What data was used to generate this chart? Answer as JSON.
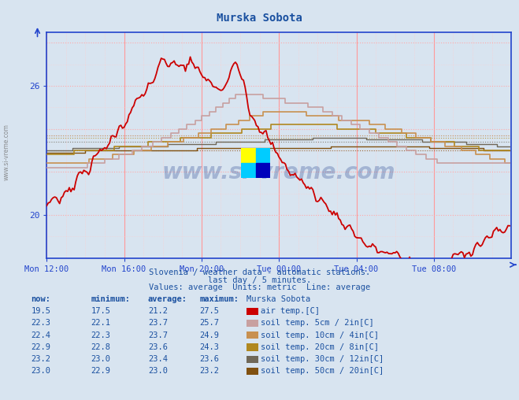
{
  "title": "Murska Sobota",
  "bg_color": "#d8e4f0",
  "plot_bg_color": "#d8e4f0",
  "xlim": [
    0,
    288
  ],
  "ylim": [
    18.0,
    28.5
  ],
  "ytick_positions": [
    20,
    26
  ],
  "ytick_labels": [
    "20",
    "26"
  ],
  "xtick_labels": [
    "Mon 12:00",
    "Mon 16:00",
    "Mon 20:00",
    "Tue 00:00",
    "Tue 04:00",
    "Tue 08:00"
  ],
  "xtick_positions": [
    0,
    48,
    96,
    144,
    192,
    240
  ],
  "subtitle1": "Slovenia / weather data - automatic stations.",
  "subtitle2": "last day / 5 minutes.",
  "subtitle3": "Values: average  Units: metric  Line: average",
  "legend_title": "Murska Sobota",
  "legend_items": [
    {
      "label": "air temp.[C]",
      "color": "#cc0000",
      "now": "19.5",
      "min": "17.5",
      "avg": "21.2",
      "max": "27.5"
    },
    {
      "label": "soil temp. 5cm / 2in[C]",
      "color": "#c8a0a0",
      "now": "22.3",
      "min": "22.1",
      "avg": "23.7",
      "max": "25.7"
    },
    {
      "label": "soil temp. 10cm / 4in[C]",
      "color": "#c89050",
      "now": "22.4",
      "min": "22.3",
      "avg": "23.7",
      "max": "24.9"
    },
    {
      "label": "soil temp. 20cm / 8in[C]",
      "color": "#b08820",
      "now": "22.9",
      "min": "22.8",
      "avg": "23.6",
      "max": "24.3"
    },
    {
      "label": "soil temp. 30cm / 12in[C]",
      "color": "#706858",
      "now": "23.2",
      "min": "23.0",
      "avg": "23.4",
      "max": "23.6"
    },
    {
      "label": "soil temp. 50cm / 20in[C]",
      "color": "#805010",
      "now": "23.0",
      "min": "22.9",
      "avg": "23.0",
      "max": "23.2"
    }
  ],
  "text_color": "#1a50a0",
  "axis_color": "#2244cc",
  "watermark_text": "www.si-vreme.com",
  "watermark_color": "#1a3a8a"
}
